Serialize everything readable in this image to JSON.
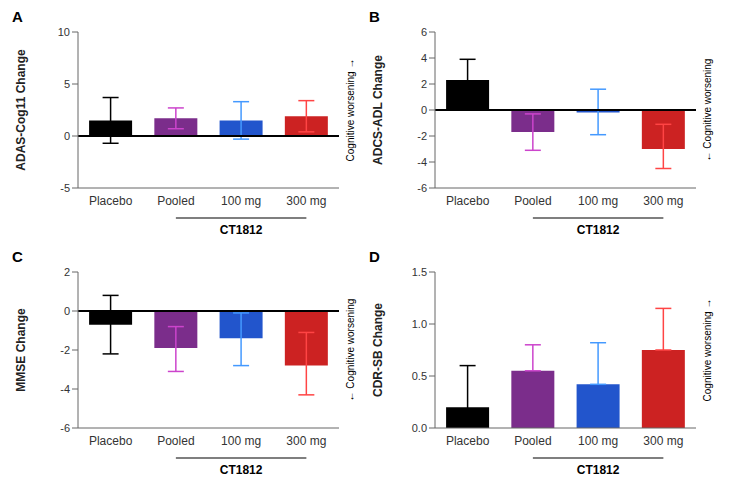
{
  "chart_data": [
    {
      "type": "bar",
      "title": "A",
      "ylabel": "ADAS-Cog11 Change",
      "categories": [
        "Placebo",
        "Pooled",
        "100 mg",
        "300 mg"
      ],
      "values": [
        1.5,
        1.7,
        1.5,
        1.9
      ],
      "error_lo": [
        2.2,
        1.0,
        1.8,
        1.5
      ],
      "error_hi": [
        2.2,
        1.0,
        1.8,
        1.5
      ],
      "colors": [
        "#000000",
        "#7B2D8B",
        "#2255CC",
        "#CC2222"
      ],
      "error_colors": [
        "#000000",
        "#CC44CC",
        "#4499FF",
        "#FF4444"
      ],
      "ylim": [
        -5,
        10
      ],
      "yticks": [
        -5,
        0,
        5,
        10
      ],
      "hline": 0,
      "grid": false,
      "annotations": [
        {
          "text": "Cognitive worsening →"
        },
        {
          "text": "CT1812",
          "from": "Pooled",
          "to": "300 mg"
        }
      ]
    },
    {
      "type": "bar",
      "title": "B",
      "ylabel": "ADCS-ADL Change",
      "categories": [
        "Placebo",
        "Pooled",
        "100 mg",
        "300 mg"
      ],
      "values": [
        2.3,
        -1.7,
        -0.2,
        -3.0
      ],
      "error_lo": [
        1.5,
        1.4,
        1.7,
        1.5
      ],
      "error_hi": [
        1.6,
        1.4,
        1.8,
        1.9
      ],
      "colors": [
        "#000000",
        "#7B2D8B",
        "#2255CC",
        "#CC2222"
      ],
      "error_colors": [
        "#000000",
        "#CC44CC",
        "#4499FF",
        "#FF4444"
      ],
      "ylim": [
        -6,
        6
      ],
      "yticks": [
        -6,
        -4,
        -2,
        0,
        2,
        4,
        6
      ],
      "hline": 0,
      "grid": false,
      "annotations": [
        {
          "text": "← Cognitive worsening"
        },
        {
          "text": "CT1812",
          "from": "Pooled",
          "to": "300 mg"
        }
      ]
    },
    {
      "type": "bar",
      "title": "C",
      "ylabel": "MMSE Change",
      "categories": [
        "Placebo",
        "Pooled",
        "100 mg",
        "300 mg"
      ],
      "values": [
        -0.7,
        -1.9,
        -1.4,
        -2.8
      ],
      "error_lo": [
        1.5,
        1.2,
        1.4,
        1.5
      ],
      "error_hi": [
        1.5,
        1.1,
        1.3,
        1.7
      ],
      "colors": [
        "#000000",
        "#7B2D8B",
        "#2255CC",
        "#CC2222"
      ],
      "error_colors": [
        "#000000",
        "#CC44CC",
        "#4499FF",
        "#FF4444"
      ],
      "ylim": [
        -6,
        2
      ],
      "yticks": [
        -6,
        -4,
        -2,
        0,
        2
      ],
      "hline": 0,
      "grid": false,
      "annotations": [
        {
          "text": "← Cognitive worsening"
        },
        {
          "text": "CT1812",
          "from": "Pooled",
          "to": "300 mg"
        }
      ]
    },
    {
      "type": "bar",
      "title": "D",
      "ylabel": "CDR-SB Change",
      "categories": [
        "Placebo",
        "Pooled",
        "100 mg",
        "300 mg"
      ],
      "values": [
        0.2,
        0.55,
        0.42,
        0.75
      ],
      "error_lo": [
        0.06,
        0.0,
        0.0,
        0.0
      ],
      "error_hi": [
        0.4,
        0.25,
        0.4,
        0.4
      ],
      "colors": [
        "#000000",
        "#7B2D8B",
        "#2255CC",
        "#CC2222"
      ],
      "error_colors": [
        "#000000",
        "#CC44CC",
        "#4499FF",
        "#FF4444"
      ],
      "ylim": [
        0,
        1.5
      ],
      "yticks": [
        {
          "value": 0,
          "label": "0.0"
        },
        0.5,
        {
          "value": 1,
          "label": "1.0"
        },
        1.5
      ],
      "grid": false,
      "annotations": [
        {
          "text": "Cognitive worsening →"
        },
        {
          "text": "CT1812",
          "from": "Pooled",
          "to": "300 mg"
        }
      ]
    }
  ]
}
